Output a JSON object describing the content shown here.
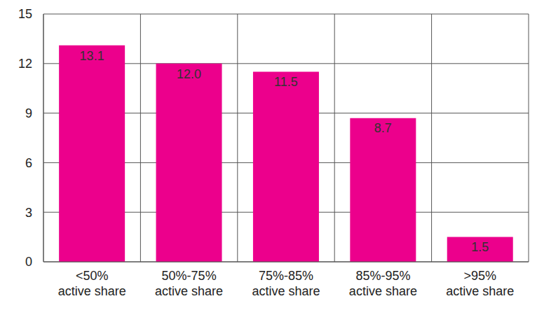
{
  "chart_data": {
    "type": "bar",
    "categories": [
      "<50%\nactive share",
      "50%-75%\nactive share",
      "75%-85%\nactive share",
      "85%-95%\nactive share",
      ">95%\nactive share"
    ],
    "values": [
      13.1,
      12.0,
      11.5,
      8.7,
      1.5
    ],
    "value_labels": [
      "13.1",
      "12.0",
      "11.5",
      "8.7",
      "1.5"
    ],
    "color": "#ec008c",
    "ylim": [
      0,
      15
    ],
    "yticks": [
      0,
      3,
      6,
      9,
      12,
      15
    ],
    "grid": true,
    "data_labels": true
  }
}
